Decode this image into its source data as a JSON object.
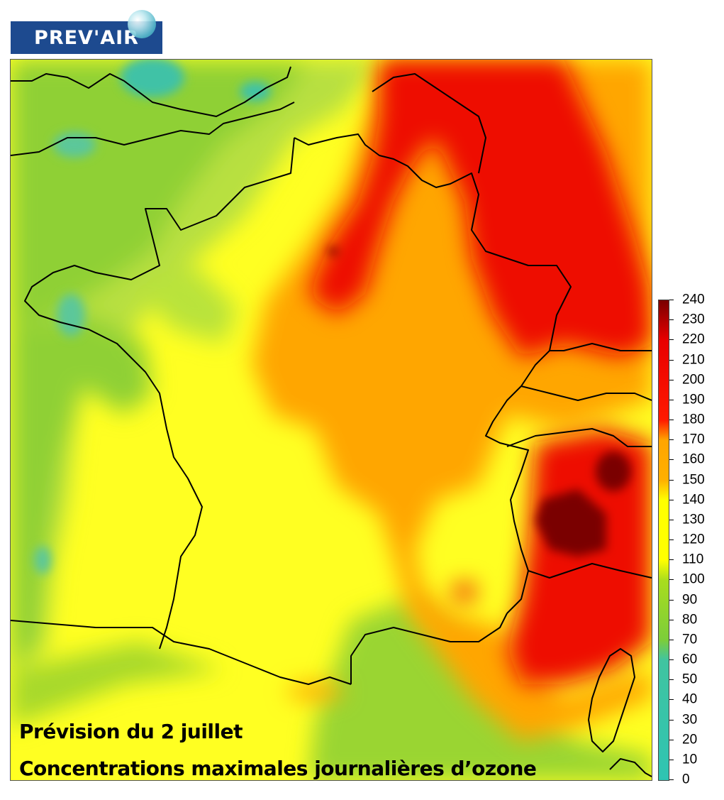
{
  "logo": {
    "text": "PREV'AIR"
  },
  "captions": {
    "line1": "Prévision du 2 juillet",
    "line2": "Concentrations maximales journalières d’ozone"
  },
  "map": {
    "region": "France",
    "country_border_color": "#000000"
  },
  "legend": {
    "ticks": [
      240,
      230,
      220,
      210,
      200,
      190,
      180,
      170,
      160,
      150,
      140,
      130,
      120,
      110,
      100,
      90,
      80,
      70,
      60,
      50,
      40,
      30,
      20,
      10,
      0
    ],
    "color_stops": [
      {
        "value": 0,
        "color": "#2fc4b2"
      },
      {
        "value": 60,
        "color": "#40c4a0"
      },
      {
        "value": 70,
        "color": "#7ccd3a"
      },
      {
        "value": 100,
        "color": "#a9dd1e"
      },
      {
        "value": 110,
        "color": "#ffff00"
      },
      {
        "value": 140,
        "color": "#ffff00"
      },
      {
        "value": 150,
        "color": "#ffb000"
      },
      {
        "value": 170,
        "color": "#ffa500"
      },
      {
        "value": 180,
        "color": "#ff1a00"
      },
      {
        "value": 220,
        "color": "#e80000"
      },
      {
        "value": 240,
        "color": "#7a0000"
      }
    ]
  }
}
